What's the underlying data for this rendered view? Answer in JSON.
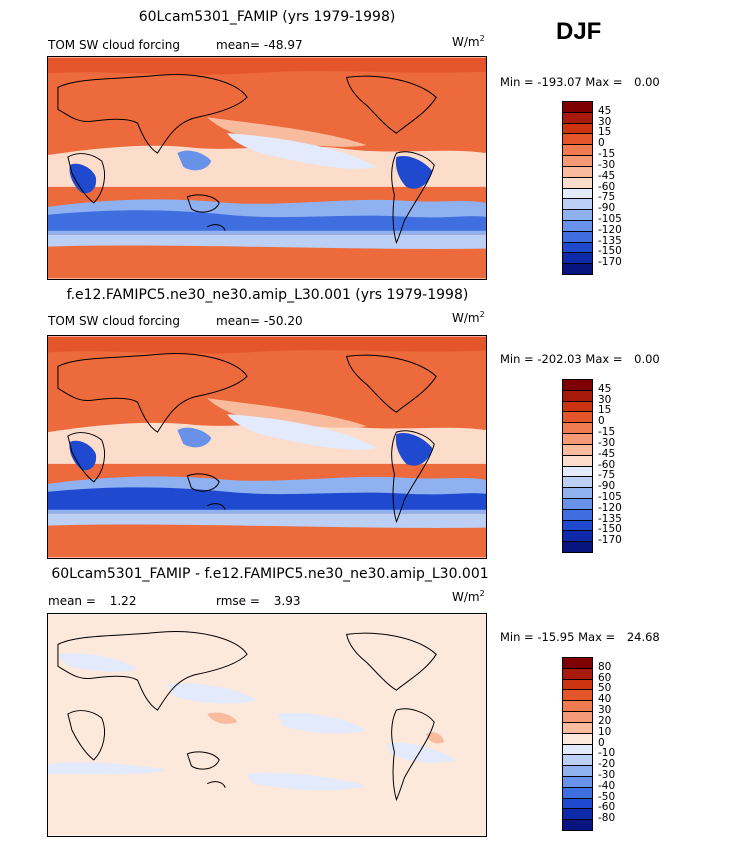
{
  "season": "DJF",
  "chart_data": [
    {
      "type": "heatmap",
      "title": "60Lcam5301_FAMIP (yrs 1979-1998)",
      "left_label": "TOM SW cloud forcing",
      "stat_label": "mean=",
      "stat_value": "-48.97",
      "units_base": "W/m",
      "units_exp": "2",
      "min_label": "Min =",
      "min_value": "-193.07",
      "max_label": "Max =",
      "max_value": "0.00",
      "levels": [
        "45",
        "30",
        "15",
        "0",
        "-15",
        "-30",
        "-45",
        "-60",
        "-75",
        "-90",
        "-105",
        "-120",
        "-135",
        "-150",
        "-170"
      ],
      "colors": [
        "#7f0000",
        "#a81a0c",
        "#cc3311",
        "#e4552a",
        "#f07b50",
        "#f59a76",
        "#f9bb9e",
        "#fcdccb",
        "#e2eafb",
        "#bcd0f6",
        "#90b1f0",
        "#6891ea",
        "#3f6ee0",
        "#1f49cf",
        "#0e2aa8",
        "#081581"
      ]
    },
    {
      "type": "heatmap",
      "title": "f.e12.FAMIPC5.ne30_ne30.amip_L30.001 (yrs 1979-1998)",
      "left_label": "TOM SW cloud forcing",
      "stat_label": "mean=",
      "stat_value": "-50.20",
      "units_base": "W/m",
      "units_exp": "2",
      "min_label": "Min =",
      "min_value": "-202.03",
      "max_label": "Max =",
      "max_value": "0.00",
      "levels": [
        "45",
        "30",
        "15",
        "0",
        "-15",
        "-30",
        "-45",
        "-60",
        "-75",
        "-90",
        "-105",
        "-120",
        "-135",
        "-150",
        "-170"
      ],
      "colors": [
        "#7f0000",
        "#a81a0c",
        "#cc3311",
        "#e4552a",
        "#f07b50",
        "#f59a76",
        "#f9bb9e",
        "#fcdccb",
        "#e2eafb",
        "#bcd0f6",
        "#90b1f0",
        "#6891ea",
        "#3f6ee0",
        "#1f49cf",
        "#0e2aa8",
        "#081581"
      ]
    },
    {
      "type": "heatmap",
      "title": "60Lcam5301_FAMIP - f.e12.FAMIPC5.ne30_ne30.amip_L30.001",
      "left_label": "mean =",
      "left_value": "1.22",
      "stat_label": "rmse =",
      "stat_value": "3.93",
      "units_base": "W/m",
      "units_exp": "2",
      "min_label": "Min =",
      "min_value": "-15.95",
      "max_label": "Max =",
      "max_value": "24.68",
      "levels": [
        "80",
        "60",
        "50",
        "40",
        "30",
        "20",
        "10",
        "0",
        "-10",
        "-20",
        "-30",
        "-40",
        "-50",
        "-60",
        "-80"
      ],
      "colors": [
        "#7f0000",
        "#a81a0c",
        "#cc3311",
        "#e4552a",
        "#f07b50",
        "#f59a76",
        "#f9bb9e",
        "#fde8dc",
        "#e2eafb",
        "#bcd0f6",
        "#90b1f0",
        "#6891ea",
        "#3f6ee0",
        "#1f49cf",
        "#0e2aa8",
        "#081581"
      ]
    }
  ]
}
